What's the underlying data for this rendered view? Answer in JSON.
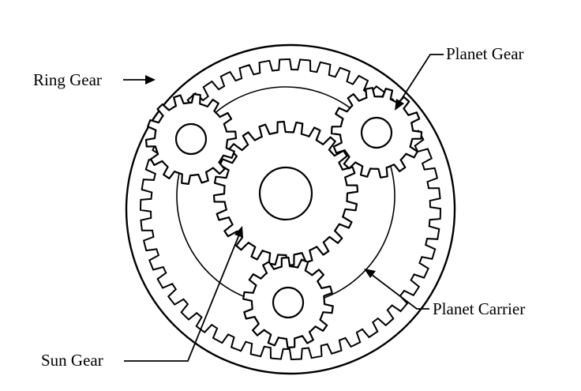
{
  "labels": {
    "ring_gear": "Ring Gear",
    "planet_gear": "Planet Gear",
    "sun_gear": "Sun Gear",
    "planet_carrier": "Planet Carrier"
  },
  "colors": {
    "line": "#000000",
    "background": "#ffffff"
  }
}
